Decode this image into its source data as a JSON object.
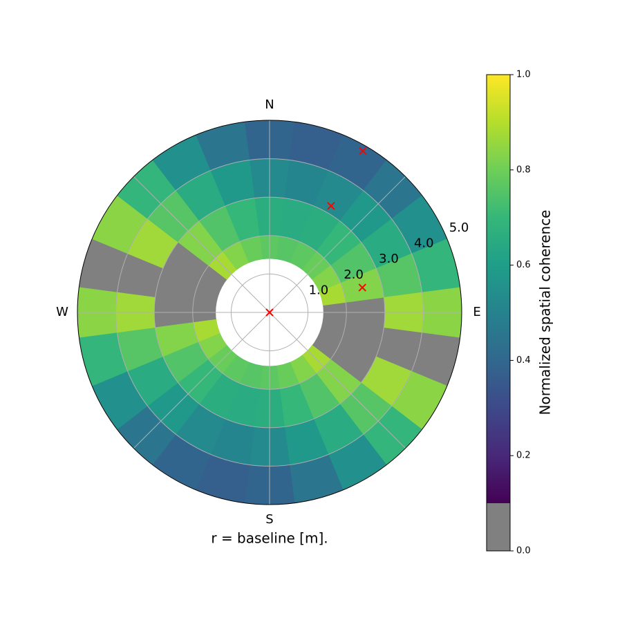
{
  "chart_data": {
    "type": "polar_heatmap",
    "xlabel": "r = baseline [m].",
    "rlim": [
      0,
      5
    ],
    "rticks": [
      {
        "value": 1,
        "label": "1.0"
      },
      {
        "value": 2,
        "label": "2.0"
      },
      {
        "value": 3,
        "label": "3.0"
      },
      {
        "value": 4,
        "label": "4.0"
      },
      {
        "value": 5,
        "label": "5.0"
      }
    ],
    "thetagrids": [
      0,
      45,
      90,
      135,
      180,
      225,
      270,
      315
    ],
    "direction_labels": [
      {
        "value": 0,
        "label": "N"
      },
      {
        "value": 90,
        "label": "E"
      },
      {
        "value": 180,
        "label": "S"
      },
      {
        "value": 270,
        "label": "W"
      }
    ],
    "grid": true,
    "theta_bins": [
      -7.5,
      7.5,
      22.5,
      37.5,
      52.5,
      67.5,
      82.5,
      97.5,
      112.5,
      127.5,
      142.5,
      157.5,
      172.5,
      187.5,
      202.5,
      217.5,
      232.5,
      247.5,
      262.5,
      277.5,
      292.5,
      307.5,
      322.5,
      337.5,
      352.5
    ],
    "r_bins": [
      1.4,
      2,
      3,
      4,
      5
    ],
    "values": [
      [
        0.77,
        0.66,
        0.53,
        0.39
      ],
      [
        0.76,
        0.65,
        0.51,
        0.37
      ],
      [
        0.77,
        0.66,
        0.53,
        0.39
      ],
      [
        0.79,
        0.7,
        0.58,
        0.45
      ],
      [
        0.83,
        0.75,
        0.65,
        0.55
      ],
      [
        0.88,
        0.83,
        0.76,
        0.69
      ],
      [
        null,
        null,
        0.87,
        0.84
      ],
      [
        null,
        null,
        null,
        null
      ],
      [
        null,
        null,
        0.87,
        0.84
      ],
      [
        0.88,
        0.83,
        0.76,
        0.69
      ],
      [
        0.83,
        0.75,
        0.65,
        0.55
      ],
      [
        0.79,
        0.7,
        0.58,
        0.45
      ],
      [
        0.77,
        0.66,
        0.53,
        0.39
      ],
      [
        0.76,
        0.65,
        0.51,
        0.37
      ],
      [
        0.77,
        0.66,
        0.53,
        0.39
      ],
      [
        0.79,
        0.7,
        0.58,
        0.45
      ],
      [
        0.83,
        0.75,
        0.65,
        0.55
      ],
      [
        0.88,
        0.83,
        0.76,
        0.69
      ],
      [
        null,
        null,
        0.87,
        0.84
      ],
      [
        null,
        null,
        null,
        null
      ],
      [
        null,
        null,
        0.87,
        0.84
      ],
      [
        0.88,
        0.83,
        0.76,
        0.69
      ],
      [
        0.83,
        0.75,
        0.65,
        0.55
      ],
      [
        0.79,
        0.7,
        0.58,
        0.45
      ]
    ],
    "mask_color": "#808080",
    "points": {
      "color": "#ff0000",
      "theta": [
        0,
        75,
        30,
        30
      ],
      "r": [
        0,
        2.5,
        3.2,
        4.85
      ]
    },
    "colorbar": {
      "label": "Normalized spatial coherence",
      "lim": [
        0,
        1
      ],
      "mask_below": 0.1,
      "ticks": [
        {
          "value": 0,
          "label": "0.0"
        },
        0.2,
        0.4,
        0.6,
        0.8,
        {
          "value": 1,
          "label": "1.0"
        }
      ]
    }
  }
}
